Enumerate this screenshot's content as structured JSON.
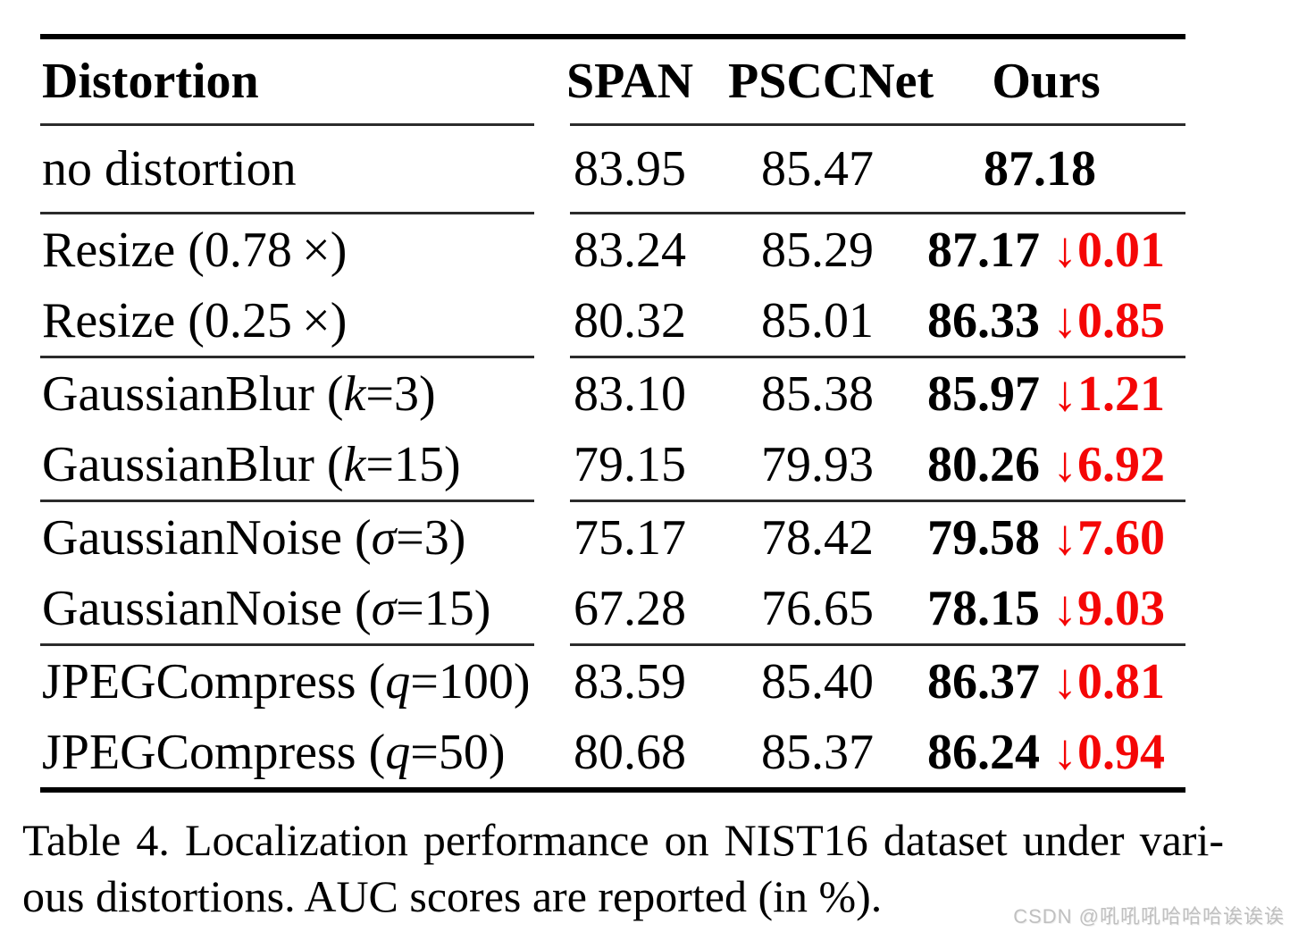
{
  "colors": {
    "text": "#000000",
    "delta_red": "#f40606",
    "rule_dark": "#000000",
    "rule_thin": "#2b2b2b",
    "watermark_gray": "#c0c0c0",
    "background": "#ffffff"
  },
  "table": {
    "header": {
      "distortion": "Distortion",
      "span": "SPAN",
      "psccnet": "PSCCNet",
      "ours": "Ours"
    },
    "groups": [
      {
        "rows": [
          {
            "label_pre": "no distortion",
            "label_var": "",
            "label_post": "",
            "span": "83.95",
            "psccnet": "85.47",
            "ours": "87.18",
            "delta": ""
          }
        ]
      },
      {
        "rows": [
          {
            "label_pre": "Resize (0.78",
            "label_var": "",
            "label_post": " ×)",
            "span": "83.24",
            "psccnet": "85.29",
            "ours": "87.17",
            "delta": "↓0.01"
          },
          {
            "label_pre": "Resize (0.25",
            "label_var": "",
            "label_post": " ×)",
            "span": "80.32",
            "psccnet": "85.01",
            "ours": "86.33",
            "delta": "↓0.85"
          }
        ]
      },
      {
        "rows": [
          {
            "label_pre": "GaussianBlur (",
            "label_var": "k",
            "label_post": "=3)",
            "span": "83.10",
            "psccnet": "85.38",
            "ours": "85.97",
            "delta": "↓1.21"
          },
          {
            "label_pre": "GaussianBlur (",
            "label_var": "k",
            "label_post": "=15)",
            "span": "79.15",
            "psccnet": "79.93",
            "ours": "80.26",
            "delta": "↓6.92"
          }
        ]
      },
      {
        "rows": [
          {
            "label_pre": "GaussianNoise (",
            "label_var": "σ",
            "label_post": "=3)",
            "span": "75.17",
            "psccnet": "78.42",
            "ours": "79.58",
            "delta": "↓7.60"
          },
          {
            "label_pre": "GaussianNoise (",
            "label_var": "σ",
            "label_post": "=15)",
            "span": "67.28",
            "psccnet": "76.65",
            "ours": "78.15",
            "delta": "↓9.03"
          }
        ]
      },
      {
        "rows": [
          {
            "label_pre": "JPEGCompress (",
            "label_var": "q",
            "label_post": "=100)",
            "span": "83.59",
            "psccnet": "85.40",
            "ours": "86.37",
            "delta": "↓0.81"
          },
          {
            "label_pre": "JPEGCompress (",
            "label_var": "q",
            "label_post": "=50)",
            "span": "80.68",
            "psccnet": "85.37",
            "ours": "86.24",
            "delta": "↓0.94"
          }
        ]
      }
    ]
  },
  "caption": {
    "line1": "Table 4. Localization performance on NIST16 dataset under vari-",
    "line2": "ous distortions. AUC scores are reported (in %)."
  },
  "watermark": {
    "text": "CSDN @吼吼吼哈哈哈诶诶诶"
  }
}
